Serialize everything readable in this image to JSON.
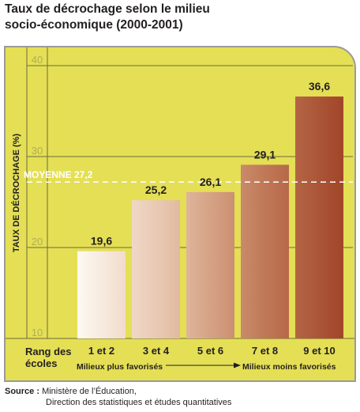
{
  "title": {
    "line1": "Taux de décrochage selon le milieu",
    "line2": "socio-économique (2000-2001)"
  },
  "source": {
    "label": "Source :",
    "line1": "Ministère de l’Éducation,",
    "line2": "Direction des statistiques et études quantitatives"
  },
  "colors": {
    "panel_bg": "#e4df55",
    "panel_border": "#9a9a98",
    "gridline": "#6e6b3b",
    "average_line": "#ffffff",
    "bar_light": "#fdf8f1",
    "bar_dark": "#a2462a"
  },
  "chart_data": {
    "type": "bar",
    "ylabel": "TAUX DE DÉCROCHAGE (%)",
    "ylim": [
      10,
      42
    ],
    "yticks": [
      "10",
      "20",
      "30",
      "40"
    ],
    "x_axis_title": "Rang des écoles",
    "categories": [
      "1 et 2",
      "3 et 4",
      "5 et 6",
      "7 et 8",
      "9 et 10"
    ],
    "values": [
      19.6,
      25.2,
      26.1,
      29.1,
      36.6
    ],
    "value_labels": [
      "19,6",
      "25,2",
      "26,1",
      "29,1",
      "36,6"
    ],
    "average": {
      "label": "MOYENNE 27,2",
      "value": 27.2
    },
    "range_note": {
      "left": "Milieux plus favorisés",
      "right": "Milieux moins favorisés"
    },
    "grid": true
  }
}
